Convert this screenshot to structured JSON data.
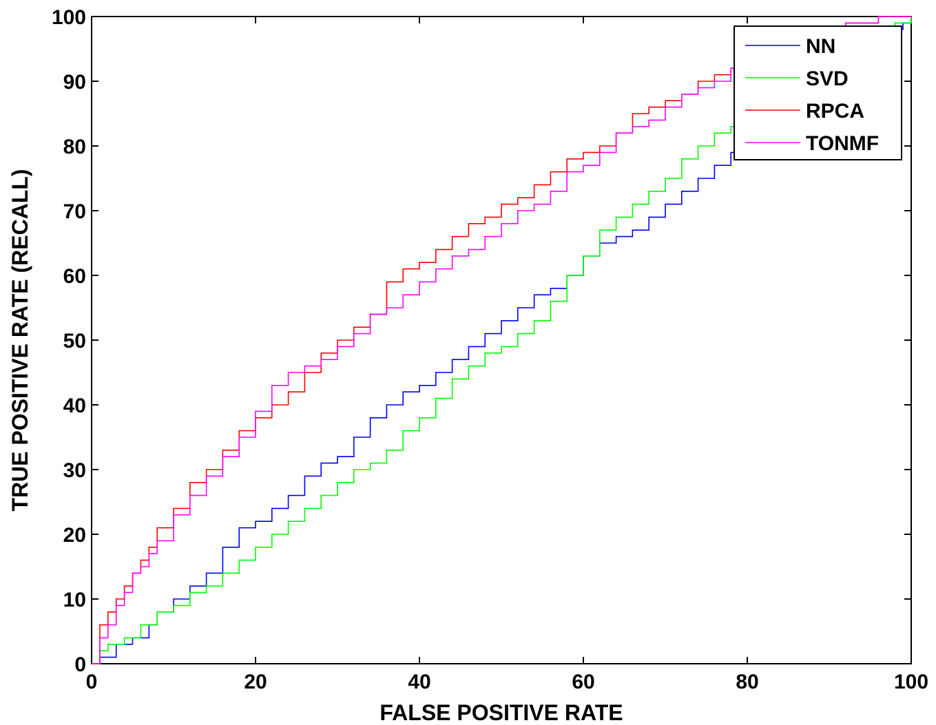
{
  "chart_data": {
    "type": "line",
    "xlabel": "FALSE POSITIVE RATE",
    "ylabel": "TRUE POSITIVE RATE (RECALL)",
    "xlim": [
      0,
      100
    ],
    "ylim": [
      0,
      100
    ],
    "xticks": [
      "0",
      "20",
      "40",
      "60",
      "80",
      "100"
    ],
    "yticks": [
      "0",
      "10",
      "20",
      "30",
      "40",
      "50",
      "60",
      "70",
      "80",
      "90",
      "100"
    ],
    "grid": false,
    "legend_position": "top-right",
    "series": [
      {
        "name": "NN",
        "color": "#0000ff",
        "x": [
          0,
          1,
          2,
          3,
          5,
          7,
          8,
          10,
          12,
          14,
          16,
          18,
          20,
          22,
          24,
          26,
          28,
          30,
          32,
          34,
          36,
          38,
          40,
          42,
          44,
          46,
          48,
          50,
          52,
          54,
          56,
          58,
          60,
          62,
          64,
          66,
          68,
          70,
          72,
          74,
          76,
          78,
          80,
          82,
          85,
          88,
          90,
          92,
          95,
          98,
          99,
          100
        ],
        "y": [
          0,
          1,
          1,
          3,
          4,
          6,
          8,
          10,
          12,
          14,
          18,
          21,
          22,
          24,
          26,
          29,
          31,
          32,
          35,
          38,
          40,
          42,
          43,
          45,
          47,
          49,
          51,
          53,
          55,
          57,
          58,
          60,
          63,
          65,
          66,
          67,
          69,
          71,
          73,
          75,
          77,
          79,
          80,
          82,
          85,
          88,
          90,
          92,
          95,
          98,
          99,
          100
        ]
      },
      {
        "name": "SVD",
        "color": "#00ff00",
        "x": [
          0,
          1,
          2,
          4,
          6,
          8,
          10,
          12,
          14,
          16,
          18,
          20,
          22,
          24,
          26,
          28,
          30,
          32,
          34,
          36,
          38,
          40,
          42,
          44,
          46,
          48,
          50,
          52,
          54,
          56,
          58,
          60,
          62,
          64,
          66,
          68,
          70,
          72,
          74,
          76,
          78,
          80,
          82,
          85,
          88,
          90,
          92,
          95,
          98,
          100
        ],
        "y": [
          0,
          2,
          3,
          4,
          6,
          8,
          9,
          11,
          12,
          14,
          16,
          18,
          20,
          22,
          24,
          26,
          28,
          30,
          31,
          33,
          36,
          38,
          41,
          44,
          46,
          48,
          49,
          51,
          53,
          56,
          60,
          63,
          67,
          69,
          71,
          73,
          75,
          78,
          80,
          82,
          83,
          85,
          87,
          89,
          91,
          93,
          95,
          97,
          99,
          100
        ]
      },
      {
        "name": "RPCA",
        "color": "#ff0000",
        "x": [
          0,
          1,
          2,
          3,
          4,
          5,
          6,
          7,
          8,
          10,
          12,
          14,
          16,
          18,
          20,
          22,
          24,
          26,
          28,
          30,
          32,
          34,
          36,
          38,
          40,
          42,
          44,
          46,
          48,
          50,
          52,
          54,
          56,
          58,
          60,
          62,
          64,
          66,
          68,
          70,
          72,
          74,
          76,
          78,
          80,
          84,
          88,
          92,
          96,
          100
        ],
        "y": [
          0,
          6,
          8,
          10,
          12,
          14,
          16,
          18,
          21,
          24,
          28,
          30,
          33,
          36,
          38,
          40,
          42,
          45,
          48,
          50,
          52,
          54,
          59,
          61,
          62,
          64,
          66,
          68,
          69,
          71,
          72,
          74,
          76,
          78,
          79,
          80,
          82,
          85,
          86,
          87,
          88,
          90,
          91,
          92,
          93,
          95,
          97,
          99,
          100,
          100
        ]
      },
      {
        "name": "TONMF",
        "color": "#ff00ff",
        "x": [
          0,
          1,
          2,
          3,
          4,
          5,
          6,
          7,
          8,
          10,
          12,
          14,
          16,
          18,
          20,
          22,
          24,
          26,
          28,
          30,
          32,
          34,
          36,
          38,
          40,
          42,
          44,
          46,
          48,
          50,
          52,
          54,
          56,
          58,
          60,
          62,
          64,
          66,
          68,
          70,
          72,
          74,
          76,
          78,
          80,
          84,
          88,
          92,
          96,
          100
        ],
        "y": [
          0,
          4,
          6,
          9,
          11,
          14,
          15,
          17,
          19,
          23,
          26,
          29,
          32,
          35,
          39,
          43,
          45,
          46,
          47,
          49,
          51,
          54,
          55,
          57,
          59,
          61,
          63,
          64,
          66,
          68,
          70,
          71,
          73,
          76,
          77,
          79,
          82,
          83,
          84,
          86,
          88,
          89,
          90,
          92,
          93,
          95,
          97,
          99,
          100,
          100
        ]
      }
    ]
  }
}
